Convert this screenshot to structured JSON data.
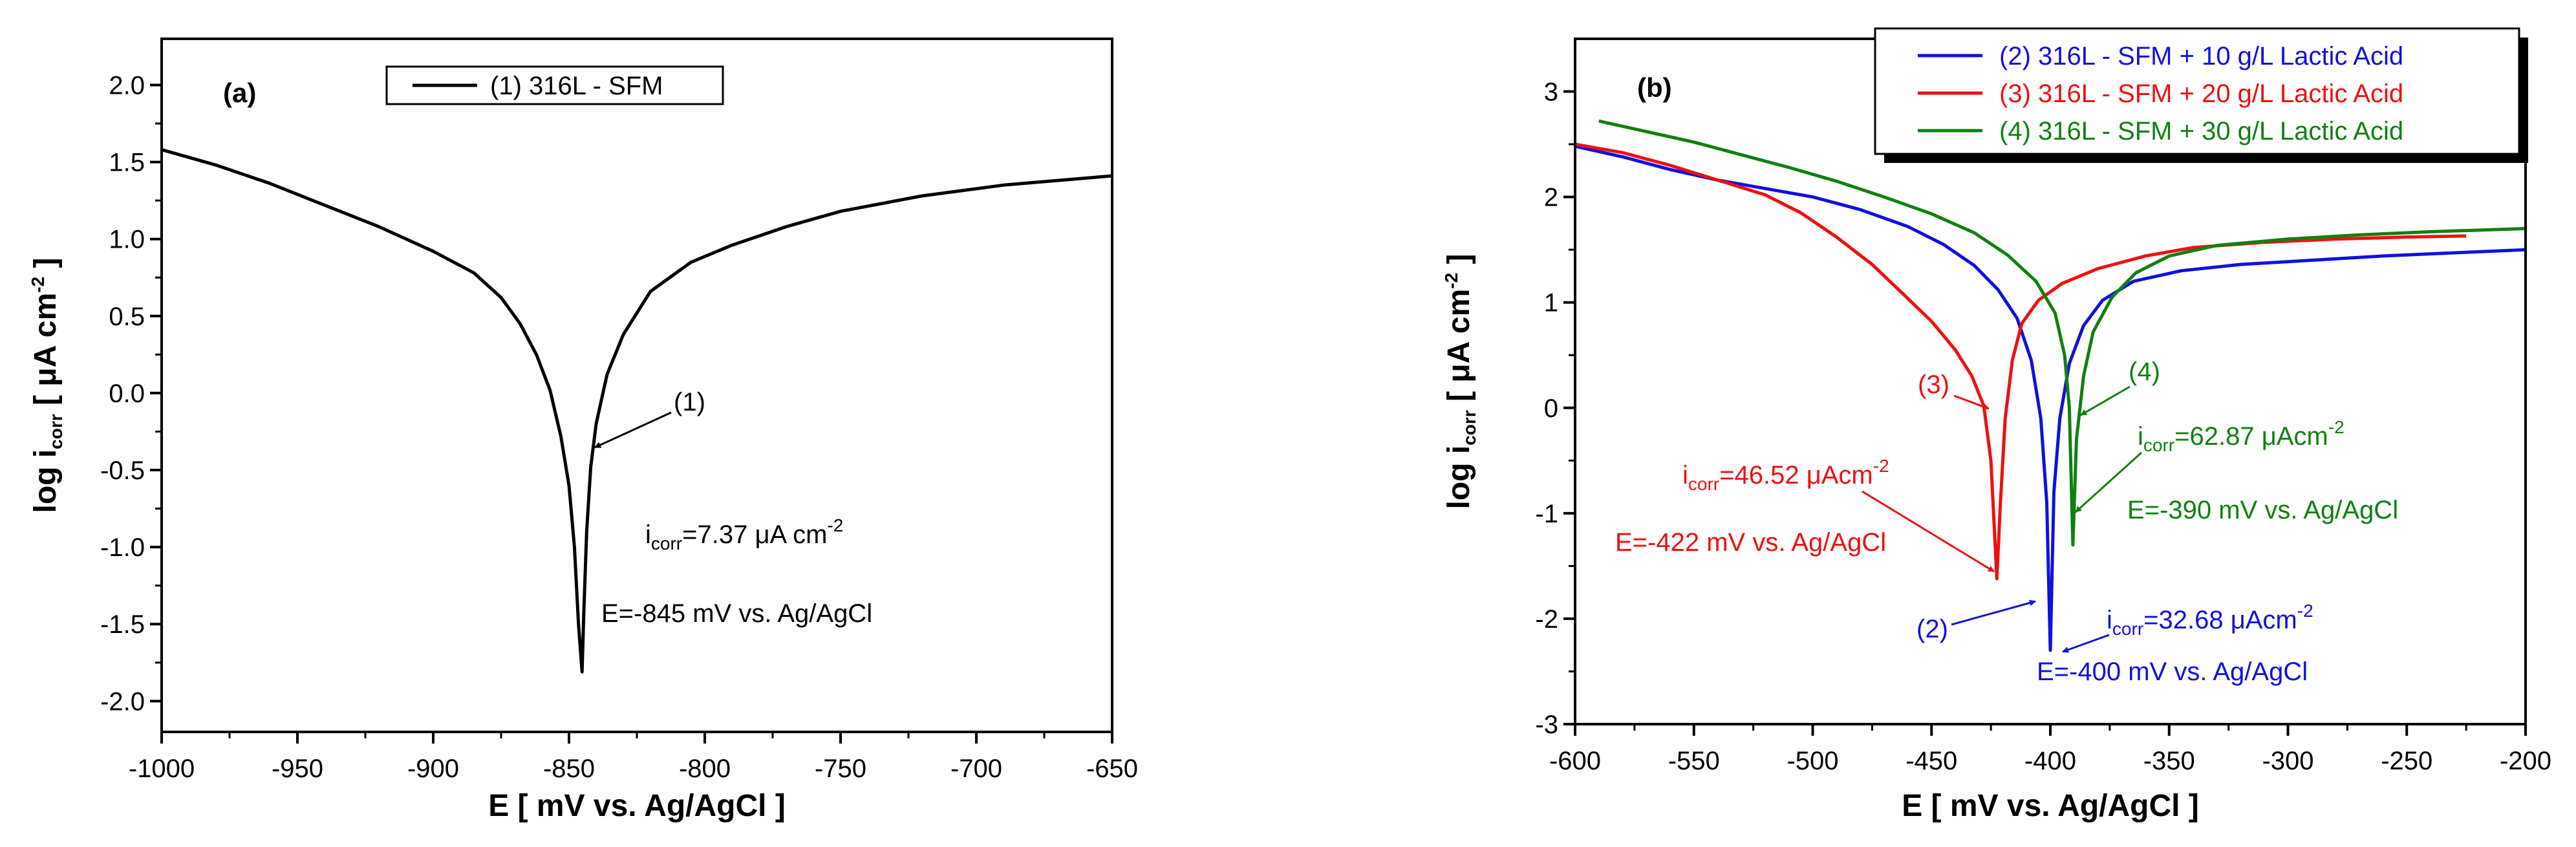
{
  "chart_data": [
    {
      "type": "line",
      "panel": "(a)",
      "xlabel": "E [ mV vs. Ag/AgCl ]",
      "ylabel_parts": [
        "log i",
        "corr",
        " [ ",
        "μ",
        "A cm",
        "-2",
        " ]"
      ],
      "xlim": [
        -1000,
        -650
      ],
      "ylim": [
        -2.2,
        2.3
      ],
      "xticks": [
        -1000,
        -950,
        -900,
        -850,
        -800,
        -750,
        -700,
        -650
      ],
      "xtick_labels": [
        "-1000",
        "-950",
        "-900",
        "-850",
        "-800",
        "-750",
        "-700",
        "-650"
      ],
      "yticks": [
        -2.0,
        -1.5,
        -1.0,
        -0.5,
        0.0,
        0.5,
        1.0,
        1.5,
        2.0
      ],
      "ytick_labels": [
        "-2.0",
        "-1.5",
        "-1.0",
        "-0.5",
        "0.0",
        "0.5",
        "1.0",
        "1.5",
        "2.0"
      ],
      "legend": [
        "(1) 316L - SFM"
      ],
      "series": [
        {
          "name": "(1) 316L - SFM",
          "color": "#000000",
          "points": [
            [
              -1000,
              1.58
            ],
            [
              -980,
              1.48
            ],
            [
              -960,
              1.36
            ],
            [
              -940,
              1.22
            ],
            [
              -920,
              1.08
            ],
            [
              -900,
              0.92
            ],
            [
              -885,
              0.78
            ],
            [
              -875,
              0.62
            ],
            [
              -868,
              0.45
            ],
            [
              -862,
              0.25
            ],
            [
              -857,
              0.02
            ],
            [
              -853,
              -0.28
            ],
            [
              -850,
              -0.6
            ],
            [
              -848,
              -1.0
            ],
            [
              -846.5,
              -1.5
            ],
            [
              -845.2,
              -1.81
            ],
            [
              -844.5,
              -1.4
            ],
            [
              -843.5,
              -0.9
            ],
            [
              -842,
              -0.48
            ],
            [
              -840,
              -0.2
            ],
            [
              -836,
              0.12
            ],
            [
              -830,
              0.38
            ],
            [
              -820,
              0.66
            ],
            [
              -805,
              0.85
            ],
            [
              -790,
              0.96
            ],
            [
              -770,
              1.08
            ],
            [
              -750,
              1.18
            ],
            [
              -720,
              1.28
            ],
            [
              -690,
              1.35
            ],
            [
              -650,
              1.41
            ]
          ]
        }
      ],
      "annotations": [
        {
          "label": "(1)",
          "color": "#000000"
        },
        {
          "parts": [
            "i",
            "corr",
            "=7.37 ",
            "μ",
            "A cm",
            "-2"
          ],
          "color": "#000000"
        },
        {
          "text": "E=-845 mV vs. Ag/AgCl",
          "color": "#000000"
        }
      ]
    },
    {
      "type": "line",
      "panel": "(b)",
      "xlabel": "E [ mV vs. Ag/AgCl ]",
      "ylabel_parts": [
        "log i",
        "corr",
        " [ ",
        "μ",
        "A cm",
        "-2",
        " ]"
      ],
      "xlim": [
        -600,
        -200
      ],
      "ylim": [
        -3,
        3.5
      ],
      "xticks": [
        -600,
        -550,
        -500,
        -450,
        -400,
        -350,
        -300,
        -250,
        -200
      ],
      "xtick_labels": [
        "-600",
        "-550",
        "-500",
        "-450",
        "-400",
        "-350",
        "-300",
        "-250",
        "-200"
      ],
      "yticks": [
        -3,
        -2,
        -1,
        0,
        1,
        2,
        3
      ],
      "ytick_labels": [
        "-3",
        "-2",
        "-1",
        "0",
        "1",
        "2",
        "3"
      ],
      "legend": [
        "(2) 316L - SFM + 10 g/L Lactic Acid",
        "(3) 316L - SFM + 20 g/L Lactic Acid",
        "(4) 316L - SFM + 30 g/L Lactic Acid"
      ],
      "series": [
        {
          "name": "(2) 316L - SFM + 10 g/L Lactic Acid",
          "color": "#1010e0",
          "points": [
            [
              -600,
              2.48
            ],
            [
              -580,
              2.38
            ],
            [
              -560,
              2.26
            ],
            [
              -540,
              2.16
            ],
            [
              -520,
              2.08
            ],
            [
              -500,
              2.0
            ],
            [
              -480,
              1.88
            ],
            [
              -460,
              1.72
            ],
            [
              -445,
              1.55
            ],
            [
              -432,
              1.35
            ],
            [
              -422,
              1.12
            ],
            [
              -414,
              0.85
            ],
            [
              -408,
              0.45
            ],
            [
              -404,
              -0.1
            ],
            [
              -401.5,
              -0.9
            ],
            [
              -400,
              -2.3
            ],
            [
              -398.5,
              -0.8
            ],
            [
              -396,
              -0.1
            ],
            [
              -392,
              0.42
            ],
            [
              -386,
              0.78
            ],
            [
              -378,
              1.02
            ],
            [
              -365,
              1.2
            ],
            [
              -345,
              1.3
            ],
            [
              -320,
              1.36
            ],
            [
              -290,
              1.4
            ],
            [
              -260,
              1.44
            ],
            [
              -230,
              1.47
            ],
            [
              -200,
              1.5
            ]
          ]
        },
        {
          "name": "(3) 316L - SFM + 20 g/L Lactic Acid",
          "color": "#ee1010",
          "points": [
            [
              -600,
              2.5
            ],
            [
              -580,
              2.42
            ],
            [
              -560,
              2.3
            ],
            [
              -540,
              2.16
            ],
            [
              -520,
              2.02
            ],
            [
              -505,
              1.85
            ],
            [
              -490,
              1.62
            ],
            [
              -475,
              1.36
            ],
            [
              -462,
              1.08
            ],
            [
              -450,
              0.82
            ],
            [
              -440,
              0.55
            ],
            [
              -433,
              0.3
            ],
            [
              -428,
              0.02
            ],
            [
              -425,
              -0.5
            ],
            [
              -422.5,
              -1.62
            ],
            [
              -421,
              -0.9
            ],
            [
              -419,
              -0.1
            ],
            [
              -416,
              0.45
            ],
            [
              -412,
              0.8
            ],
            [
              -405,
              1.02
            ],
            [
              -395,
              1.18
            ],
            [
              -380,
              1.32
            ],
            [
              -360,
              1.44
            ],
            [
              -340,
              1.52
            ],
            [
              -310,
              1.57
            ],
            [
              -280,
              1.6
            ],
            [
              -250,
              1.62
            ],
            [
              -225,
              1.63
            ]
          ]
        },
        {
          "name": "(4) 316L - SFM + 30 g/L Lactic Acid",
          "color": "#108010",
          "points": [
            [
              -590,
              2.72
            ],
            [
              -570,
              2.62
            ],
            [
              -550,
              2.52
            ],
            [
              -530,
              2.4
            ],
            [
              -510,
              2.28
            ],
            [
              -490,
              2.15
            ],
            [
              -470,
              2.0
            ],
            [
              -450,
              1.84
            ],
            [
              -432,
              1.66
            ],
            [
              -418,
              1.45
            ],
            [
              -406,
              1.2
            ],
            [
              -398,
              0.9
            ],
            [
              -394,
              0.5
            ],
            [
              -392,
              0.0
            ],
            [
              -390.5,
              -1.3
            ],
            [
              -389,
              -0.3
            ],
            [
              -386,
              0.3
            ],
            [
              -382,
              0.72
            ],
            [
              -374,
              1.05
            ],
            [
              -364,
              1.28
            ],
            [
              -350,
              1.44
            ],
            [
              -330,
              1.54
            ],
            [
              -300,
              1.6
            ],
            [
              -270,
              1.64
            ],
            [
              -240,
              1.67
            ],
            [
              -200,
              1.7
            ]
          ]
        }
      ],
      "annotations": [
        {
          "label": "(3)",
          "color": "#ee1010"
        },
        {
          "label": "(4)",
          "color": "#108010"
        },
        {
          "label": "(2)",
          "color": "#1010e0"
        },
        {
          "parts": [
            "i",
            "corr",
            "=46.52 ",
            "μ",
            "Acm",
            "-2"
          ],
          "color": "#ee1010"
        },
        {
          "text": "E=-422 mV vs. Ag/AgCl",
          "color": "#ee1010"
        },
        {
          "parts": [
            "i",
            "corr",
            "=62.87 ",
            "μ",
            "Acm",
            "-2"
          ],
          "color": "#108010"
        },
        {
          "text": "E=-390 mV vs. Ag/AgCl",
          "color": "#108010"
        },
        {
          "parts": [
            "i",
            "corr",
            "=32.68 ",
            "μ",
            "Acm",
            "-2"
          ],
          "color": "#1010e0"
        },
        {
          "text": "E=-400 mV vs. Ag/AgCl",
          "color": "#1010e0"
        }
      ]
    }
  ]
}
